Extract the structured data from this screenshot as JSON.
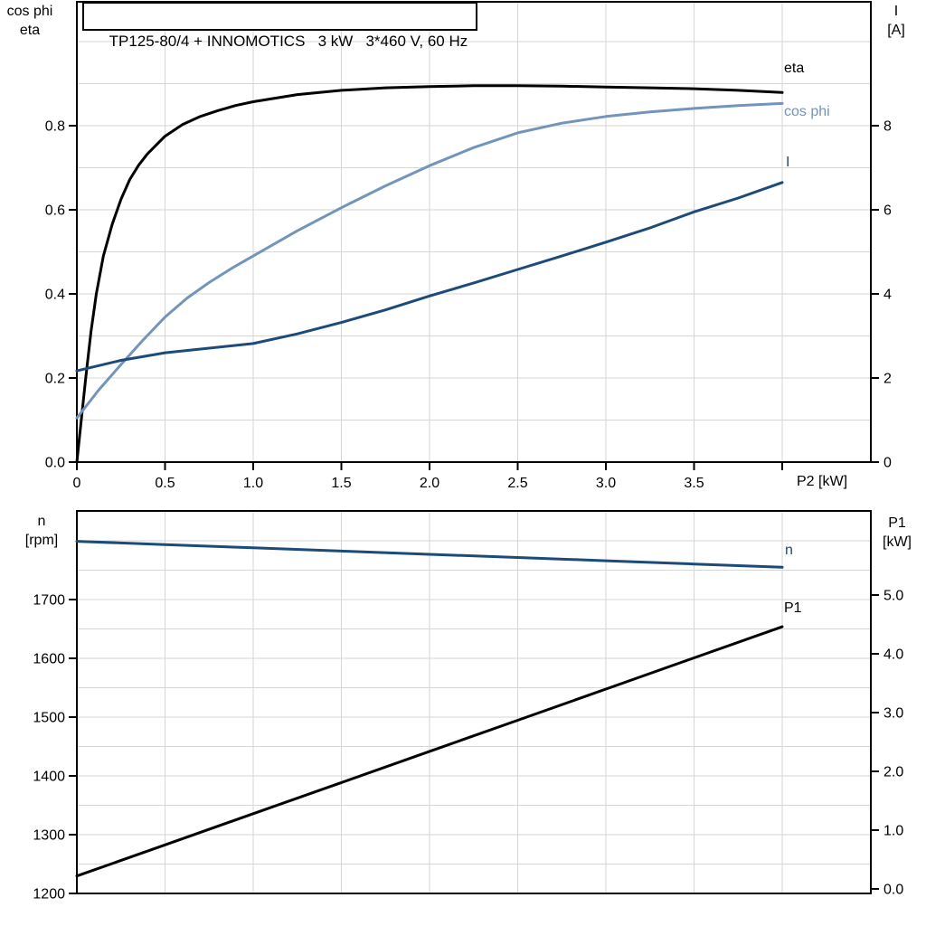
{
  "title": "TP125-80/4 + INNOMOTICS   3 kW   3*460 V, 60 Hz",
  "colors": {
    "black": "#000000",
    "light_blue": "#7394BB",
    "dark_blue": "#1C4B79",
    "gridline": "#D6D6D6",
    "axis": "#000000",
    "background": "#FFFFFF"
  },
  "labels": {
    "top_left_axis": {
      "line1": "cos phi",
      "line2": "eta"
    },
    "top_right_axis": {
      "line1": "I",
      "line2": "[A]"
    },
    "bottom_left_axis": {
      "line1": "n",
      "line2": "[rpm]"
    },
    "bottom_right_axis": {
      "line1": "P1",
      "line2": "[kW]"
    },
    "x_axis_title": "P2 [kW]"
  },
  "chart_data": [
    {
      "type": "line",
      "title": "TP125-80/4 + INNOMOTICS   3 kW   3*460 V, 60 Hz",
      "xlabel": "P2 [kW]",
      "ylabel_left": "cos phi / eta",
      "ylabel_right": "I [A]",
      "xlim": [
        0,
        4.5
      ],
      "ylim_left": [
        0,
        1.1
      ],
      "ylim_right": [
        0,
        11
      ],
      "grid": true,
      "x_gridlines": [
        0.5,
        1.0,
        1.5,
        2.0,
        2.5,
        3.0,
        3.5,
        4.0
      ],
      "y_gridlines_left": [
        0.1,
        0.2,
        0.3,
        0.4,
        0.5,
        0.6,
        0.7,
        0.8,
        0.9,
        1.0
      ],
      "x_ticks": [
        {
          "v": 0,
          "label": "0"
        },
        {
          "v": 0.5,
          "label": "0.5"
        },
        {
          "v": 1.0,
          "label": "1.0"
        },
        {
          "v": 1.5,
          "label": "1.5"
        },
        {
          "v": 2.0,
          "label": "2.0"
        },
        {
          "v": 2.5,
          "label": "2.5"
        },
        {
          "v": 3.0,
          "label": "3.0"
        },
        {
          "v": 3.5,
          "label": "3.5"
        },
        {
          "v": 4.0,
          "label": ""
        }
      ],
      "left_ticks": [
        {
          "v": 0.0,
          "label": "0.0"
        },
        {
          "v": 0.2,
          "label": "0.2"
        },
        {
          "v": 0.4,
          "label": "0.4"
        },
        {
          "v": 0.6,
          "label": "0.6"
        },
        {
          "v": 0.8,
          "label": "0.8"
        }
      ],
      "right_ticks": [
        {
          "v": 0,
          "label": "0"
        },
        {
          "v": 2,
          "label": "2"
        },
        {
          "v": 4,
          "label": "4"
        },
        {
          "v": 6,
          "label": "6"
        },
        {
          "v": 8,
          "label": "8"
        }
      ],
      "series": [
        {
          "name": "eta",
          "axis": "left",
          "color": "#000000",
          "x": [
            0,
            0.02,
            0.05,
            0.08,
            0.11,
            0.15,
            0.2,
            0.25,
            0.3,
            0.35,
            0.4,
            0.5,
            0.6,
            0.7,
            0.8,
            0.9,
            1.0,
            1.25,
            1.5,
            1.75,
            2.0,
            2.25,
            2.5,
            2.75,
            3.0,
            3.25,
            3.5,
            3.75,
            4.0
          ],
          "y": [
            0,
            0.08,
            0.2,
            0.31,
            0.4,
            0.49,
            0.565,
            0.625,
            0.672,
            0.706,
            0.733,
            0.775,
            0.803,
            0.822,
            0.836,
            0.848,
            0.857,
            0.874,
            0.884,
            0.89,
            0.893,
            0.895,
            0.895,
            0.894,
            0.892,
            0.89,
            0.888,
            0.884,
            0.879
          ]
        },
        {
          "name": "cos phi",
          "axis": "left",
          "color": "#7394BB",
          "x": [
            0,
            0.125,
            0.25,
            0.375,
            0.5,
            0.625,
            0.75,
            0.875,
            1.0,
            1.25,
            1.5,
            1.75,
            2.0,
            2.25,
            2.5,
            2.75,
            3.0,
            3.25,
            3.5,
            3.75,
            4.0
          ],
          "y": [
            0.105,
            0.172,
            0.232,
            0.29,
            0.345,
            0.39,
            0.427,
            0.46,
            0.49,
            0.55,
            0.605,
            0.657,
            0.705,
            0.748,
            0.783,
            0.806,
            0.822,
            0.833,
            0.841,
            0.848,
            0.853
          ]
        },
        {
          "name": "I",
          "axis": "right",
          "color": "#1C4B79",
          "x": [
            0,
            0.25,
            0.5,
            0.75,
            1.0,
            1.25,
            1.5,
            1.75,
            2.0,
            2.25,
            2.5,
            2.75,
            3.0,
            3.25,
            3.5,
            3.75,
            4.0
          ],
          "y": [
            2.17,
            2.42,
            2.6,
            2.71,
            2.82,
            3.05,
            3.32,
            3.62,
            3.95,
            4.26,
            4.58,
            4.9,
            5.23,
            5.57,
            5.95,
            6.28,
            6.65
          ]
        }
      ]
    },
    {
      "type": "line",
      "title": "",
      "xlabel": "",
      "ylabel_left": "n [rpm]",
      "ylabel_right": "P1 [kW]",
      "xlim": [
        0,
        4.5
      ],
      "ylim_left": [
        1200,
        1850
      ],
      "ylim_right": [
        0,
        6.4
      ],
      "grid": true,
      "x_gridlines": [
        0.5,
        1.0,
        1.5,
        2.0,
        2.5,
        3.0,
        3.5,
        4.0
      ],
      "y_gridlines_left": [
        1250,
        1300,
        1350,
        1400,
        1450,
        1500,
        1550,
        1600,
        1650,
        1700,
        1750,
        1800
      ],
      "x_ticks": [],
      "left_ticks": [
        {
          "v": 1200,
          "label": "1200"
        },
        {
          "v": 1300,
          "label": "1300"
        },
        {
          "v": 1400,
          "label": "1400"
        },
        {
          "v": 1500,
          "label": "1500"
        },
        {
          "v": 1600,
          "label": "1600"
        },
        {
          "v": 1700,
          "label": "1700"
        }
      ],
      "right_ticks": [
        {
          "v": 0,
          "label": "0.0"
        },
        {
          "v": 1,
          "label": "1.0"
        },
        {
          "v": 2,
          "label": "2.0"
        },
        {
          "v": 3,
          "label": "3.0"
        },
        {
          "v": 4,
          "label": "4.0"
        },
        {
          "v": 5,
          "label": "5.0"
        }
      ],
      "series": [
        {
          "name": "n",
          "axis": "left",
          "color": "#1C4B79",
          "x": [
            0,
            0.5,
            1.0,
            1.5,
            2.0,
            2.5,
            3.0,
            3.5,
            4.0
          ],
          "y": [
            1799,
            1793.5,
            1788,
            1782.5,
            1777,
            1771.5,
            1766,
            1760.5,
            1755
          ]
        },
        {
          "name": "P1",
          "axis": "right",
          "color": "#000000",
          "x": [
            0,
            0.5,
            1.0,
            1.5,
            2.0,
            2.5,
            3.0,
            3.5,
            4.0
          ],
          "y": [
            0.22,
            0.75,
            1.28,
            1.81,
            2.34,
            2.87,
            3.4,
            3.93,
            4.46
          ]
        }
      ]
    }
  ]
}
